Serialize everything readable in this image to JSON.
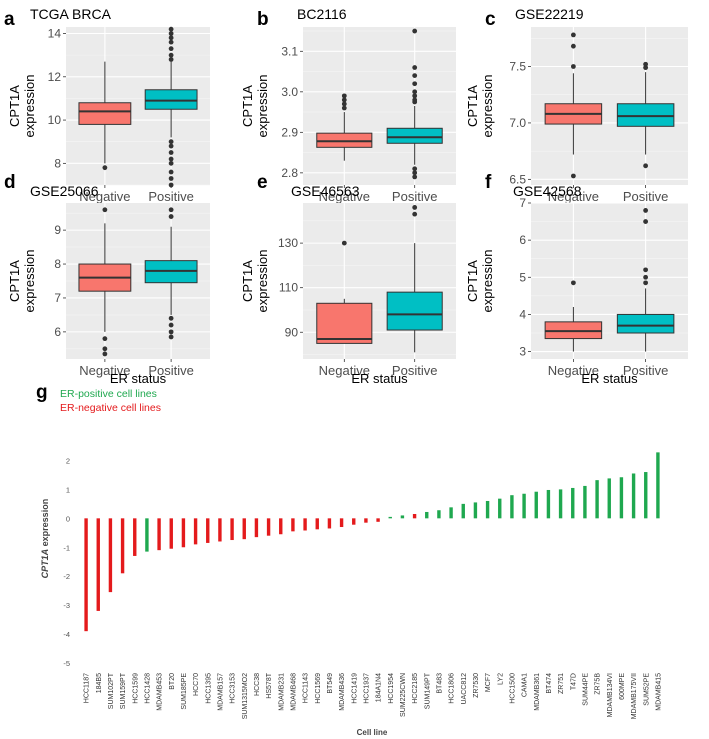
{
  "colors": {
    "negative": "#F8766D",
    "positive": "#00BFC4",
    "panel_bg": "#EBEBEB",
    "grid": "#FFFFFF",
    "bar_pos": "#1FA84F",
    "bar_neg": "#E41A1C",
    "legend_pos": "#1FA84F",
    "legend_neg": "#E41A1C"
  },
  "chart_data": [
    {
      "type": "box",
      "panel": "a",
      "title": "TCGA BRCA",
      "ylabel": "CPT1A expression",
      "xlabel": "ER status",
      "categories": [
        "Negative",
        "Positive"
      ],
      "ylim": [
        7,
        14.3
      ],
      "yticks": [
        8,
        10,
        12,
        14
      ],
      "boxes": [
        {
          "q1": 9.8,
          "median": 10.4,
          "q3": 10.8,
          "wlo": 8.0,
          "whi": 12.7,
          "outliers": [
            7.8
          ]
        },
        {
          "q1": 10.5,
          "median": 10.9,
          "q3": 11.4,
          "wlo": 9.2,
          "whi": 12.7,
          "outliers": [
            14.2,
            14.0,
            13.8,
            13.6,
            13.3,
            13.0,
            12.8,
            9.0,
            8.8,
            8.5,
            8.2,
            8.0,
            7.6,
            7.3,
            7.0
          ]
        }
      ]
    },
    {
      "type": "box",
      "panel": "b",
      "title": "BC2116",
      "ylabel": "CPT1A expression",
      "xlabel": "ER status",
      "categories": [
        "Negative",
        "Positive"
      ],
      "ylim": [
        2.77,
        3.16
      ],
      "yticks": [
        2.8,
        2.9,
        3.0,
        3.1
      ],
      "yticklabels": [
        "2.8",
        "2.9",
        "3.0",
        "3.1"
      ],
      "boxes": [
        {
          "q1": 2.863,
          "median": 2.878,
          "q3": 2.898,
          "wlo": 2.83,
          "whi": 2.95,
          "outliers": [
            2.96,
            2.97,
            2.98,
            2.99
          ]
        },
        {
          "q1": 2.873,
          "median": 2.888,
          "q3": 2.91,
          "wlo": 2.82,
          "whi": 2.965,
          "outliers": [
            3.15,
            3.06,
            3.04,
            3.02,
            3.0,
            2.99,
            2.98,
            2.975,
            2.81,
            2.8,
            2.79
          ]
        }
      ]
    },
    {
      "type": "box",
      "panel": "c",
      "title": "GSE22219",
      "ylabel": "CPT1A expression",
      "xlabel": "ER status",
      "categories": [
        "Negative",
        "Positive"
      ],
      "ylim": [
        6.45,
        7.85
      ],
      "yticks": [
        6.5,
        7.0,
        7.5
      ],
      "yticklabels": [
        "6.5",
        "7.0",
        "7.5"
      ],
      "boxes": [
        {
          "q1": 6.99,
          "median": 7.08,
          "q3": 7.17,
          "wlo": 6.72,
          "whi": 7.44,
          "outliers": [
            7.78,
            7.68,
            7.5,
            6.53
          ]
        },
        {
          "q1": 6.97,
          "median": 7.06,
          "q3": 7.17,
          "wlo": 6.72,
          "whi": 7.45,
          "outliers": [
            7.52,
            7.49,
            6.62
          ]
        }
      ]
    },
    {
      "type": "box",
      "panel": "d",
      "title": "GSE25066",
      "ylabel": "CPT1A expression",
      "xlabel": "ER status",
      "categories": [
        "Negative",
        "Positive"
      ],
      "ylim": [
        5.2,
        9.8
      ],
      "yticks": [
        6,
        7,
        8,
        9
      ],
      "boxes": [
        {
          "q1": 7.2,
          "median": 7.6,
          "q3": 8.0,
          "wlo": 6.0,
          "whi": 9.2,
          "outliers": [
            9.6,
            5.8,
            5.5,
            5.35
          ]
        },
        {
          "q1": 7.45,
          "median": 7.8,
          "q3": 8.1,
          "wlo": 6.5,
          "whi": 9.1,
          "outliers": [
            9.6,
            9.4,
            6.4,
            6.2,
            6.0,
            5.85
          ]
        }
      ]
    },
    {
      "type": "box",
      "panel": "e",
      "title": "GSE46563",
      "ylabel": "CPT1A expression",
      "xlabel": "ER status",
      "categories": [
        "Negative",
        "Positive"
      ],
      "ylim": [
        78,
        148
      ],
      "yticks": [
        90,
        110,
        130
      ],
      "boxes": [
        {
          "q1": 85,
          "median": 87,
          "q3": 103,
          "wlo": 85,
          "whi": 105,
          "outliers": [
            130
          ]
        },
        {
          "q1": 91,
          "median": 98,
          "q3": 108,
          "wlo": 81,
          "whi": 130,
          "outliers": [
            146,
            143
          ]
        }
      ]
    },
    {
      "type": "box",
      "panel": "f",
      "title": "GSE42568",
      "ylabel": "CPT1A expression",
      "xlabel": "ER status",
      "categories": [
        "Negative",
        "Positive"
      ],
      "ylim": [
        2.8,
        7.0
      ],
      "yticks": [
        3,
        4,
        5,
        6,
        7
      ],
      "boxes": [
        {
          "q1": 3.35,
          "median": 3.55,
          "q3": 3.8,
          "wlo": 3.0,
          "whi": 4.2,
          "outliers": [
            4.85
          ]
        },
        {
          "q1": 3.5,
          "median": 3.7,
          "q3": 4.0,
          "wlo": 3.0,
          "whi": 4.7,
          "outliers": [
            6.8,
            6.5,
            5.2,
            5.0,
            4.85
          ]
        }
      ]
    },
    {
      "type": "bar",
      "panel": "g",
      "ylabel": "CPT1A expression",
      "ylabel_italic": "CPT1A",
      "ylabel_rest": " expression",
      "xlabel": "Cell line",
      "ylim": [
        -5,
        2.5
      ],
      "yticks": [
        -5,
        -4,
        -3,
        -2,
        -1,
        0,
        1,
        2
      ],
      "legend": [
        "ER-positive cell lines",
        "ER-negative cell lines"
      ],
      "categories": [
        "HCC1187",
        "184B5",
        "SUM102PT",
        "SUM159PT",
        "HCC1599",
        "HCC1428",
        "MDAMB453",
        "BT20",
        "SUM185PE",
        "HCC70",
        "HCC1395",
        "MDAMB157",
        "HCC3153",
        "SUM1315MO2",
        "HCC38",
        "HS578T",
        "MDAMB231",
        "MDAMB468",
        "HCC1143",
        "HCC1569",
        "BT549",
        "MDAMB436",
        "HCC1419",
        "HCC1937",
        "184A1N4",
        "HCC1954",
        "SUM225CWN",
        "HCC2185",
        "SUM149PT",
        "BT483",
        "HCC1806",
        "UACC812",
        "ZR7530",
        "MCF7",
        "LY2",
        "HCC1500",
        "CAMA1",
        "MDAMB361",
        "BT474",
        "ZR751",
        "T47D",
        "SUM44PE",
        "ZR75B",
        "MDAMB134VI",
        "600MPE",
        "MDAMB175VII",
        "SUM52PE",
        "MDAMB415"
      ],
      "values": [
        -3.9,
        -3.2,
        -2.55,
        -1.9,
        -1.3,
        -1.15,
        -1.1,
        -1.05,
        -1.0,
        -0.9,
        -0.85,
        -0.8,
        -0.75,
        -0.72,
        -0.65,
        -0.6,
        -0.55,
        -0.45,
        -0.42,
        -0.38,
        -0.35,
        -0.3,
        -0.22,
        -0.15,
        -0.12,
        0.05,
        0.1,
        0.15,
        0.22,
        0.28,
        0.38,
        0.5,
        0.55,
        0.6,
        0.68,
        0.8,
        0.85,
        0.92,
        0.98,
        1.0,
        1.05,
        1.12,
        1.32,
        1.38,
        1.42,
        1.55,
        1.6,
        2.28
      ],
      "er_status": [
        "neg",
        "neg",
        "neg",
        "neg",
        "neg",
        "pos",
        "neg",
        "neg",
        "neg",
        "neg",
        "neg",
        "neg",
        "neg",
        "neg",
        "neg",
        "neg",
        "neg",
        "neg",
        "neg",
        "neg",
        "neg",
        "neg",
        "neg",
        "neg",
        "neg",
        "pos",
        "pos",
        "neg",
        "pos",
        "pos",
        "pos",
        "pos",
        "pos",
        "pos",
        "pos",
        "pos",
        "pos",
        "pos",
        "pos",
        "pos",
        "pos",
        "pos",
        "pos",
        "pos",
        "pos",
        "pos",
        "pos",
        "pos"
      ]
    }
  ]
}
